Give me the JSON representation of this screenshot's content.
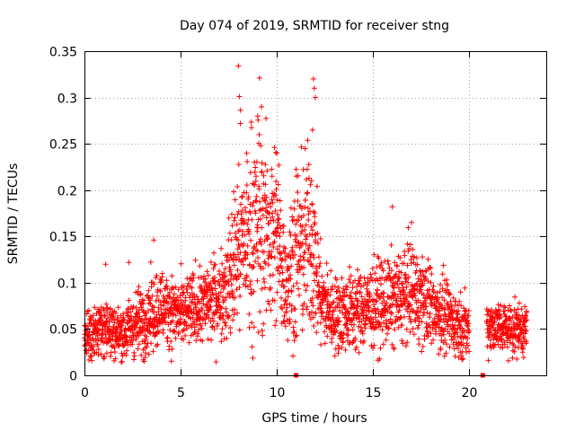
{
  "chart_data": {
    "type": "scatter",
    "title": "Day 074 of 2019, SRMTID for receiver stng",
    "xlabel": "GPS time / hours",
    "ylabel": "SRMTID / TECUs",
    "xlim": [
      0,
      24
    ],
    "ylim": [
      0,
      0.35
    ],
    "grid": true,
    "marker": "+",
    "color": "#ff0000",
    "xticks": [
      0,
      5,
      10,
      15,
      20
    ],
    "xtick_labels": [
      "0",
      "5",
      "10",
      "15",
      "20"
    ],
    "yticks": [
      0,
      0.05,
      0.1,
      0.15,
      0.2,
      0.25,
      0.3,
      0.35
    ],
    "ytick_labels": [
      "0",
      "0.05",
      "0.1",
      "0.15",
      "0.2",
      "0.25",
      "0.3",
      "0.35"
    ],
    "envelope": [
      {
        "t": 0.0,
        "median": 0.045,
        "spread": 0.012
      },
      {
        "t": 1.0,
        "median": 0.05,
        "spread": 0.015
      },
      {
        "t": 2.0,
        "median": 0.045,
        "spread": 0.014
      },
      {
        "t": 3.0,
        "median": 0.06,
        "spread": 0.018
      },
      {
        "t": 4.0,
        "median": 0.075,
        "spread": 0.02
      },
      {
        "t": 5.0,
        "median": 0.065,
        "spread": 0.018
      },
      {
        "t": 6.0,
        "median": 0.075,
        "spread": 0.02
      },
      {
        "t": 7.0,
        "median": 0.085,
        "spread": 0.022
      },
      {
        "t": 7.5,
        "median": 0.1,
        "spread": 0.03
      },
      {
        "t": 8.0,
        "median": 0.14,
        "spread": 0.05
      },
      {
        "t": 9.0,
        "median": 0.16,
        "spread": 0.055
      },
      {
        "t": 10.0,
        "median": 0.15,
        "spread": 0.05
      },
      {
        "t": 10.5,
        "median": 0.1,
        "spread": 0.03
      },
      {
        "t": 11.0,
        "median": 0.13,
        "spread": 0.05
      },
      {
        "t": 11.8,
        "median": 0.15,
        "spread": 0.05
      },
      {
        "t": 12.3,
        "median": 0.08,
        "spread": 0.025
      },
      {
        "t": 13.0,
        "median": 0.065,
        "spread": 0.02
      },
      {
        "t": 14.0,
        "median": 0.07,
        "spread": 0.022
      },
      {
        "t": 15.0,
        "median": 0.075,
        "spread": 0.022
      },
      {
        "t": 16.0,
        "median": 0.08,
        "spread": 0.023
      },
      {
        "t": 17.0,
        "median": 0.09,
        "spread": 0.025
      },
      {
        "t": 18.0,
        "median": 0.075,
        "spread": 0.022
      },
      {
        "t": 19.0,
        "median": 0.06,
        "spread": 0.018
      },
      {
        "t": 20.0,
        "median": 0.05,
        "spread": 0.015
      },
      {
        "t": 20.4,
        "median": null,
        "spread": null
      },
      {
        "t": 20.9,
        "median": 0.055,
        "spread": 0.014
      },
      {
        "t": 22.0,
        "median": 0.05,
        "spread": 0.014
      },
      {
        "t": 23.0,
        "median": 0.05,
        "spread": 0.013
      }
    ],
    "outliers": [
      {
        "x": 8.0,
        "y": 0.334
      },
      {
        "x": 8.05,
        "y": 0.301
      },
      {
        "x": 8.1,
        "y": 0.272
      },
      {
        "x": 9.1,
        "y": 0.321
      },
      {
        "x": 9.2,
        "y": 0.29
      },
      {
        "x": 9.0,
        "y": 0.28
      },
      {
        "x": 10.0,
        "y": 0.24
      },
      {
        "x": 11.9,
        "y": 0.32
      },
      {
        "x": 11.95,
        "y": 0.31
      },
      {
        "x": 12.0,
        "y": 0.3
      },
      {
        "x": 11.85,
        "y": 0.265
      },
      {
        "x": 11.8,
        "y": 0.21
      },
      {
        "x": 3.6,
        "y": 0.146
      },
      {
        "x": 1.1,
        "y": 0.12
      },
      {
        "x": 2.3,
        "y": 0.122
      },
      {
        "x": 16.0,
        "y": 0.182
      },
      {
        "x": 17.0,
        "y": 0.165
      },
      {
        "x": 3.1,
        "y": 0.015
      }
    ],
    "axis_markers": [
      {
        "x": 11.0,
        "y": 0
      },
      {
        "x": 20.7,
        "y": 0
      }
    ]
  }
}
